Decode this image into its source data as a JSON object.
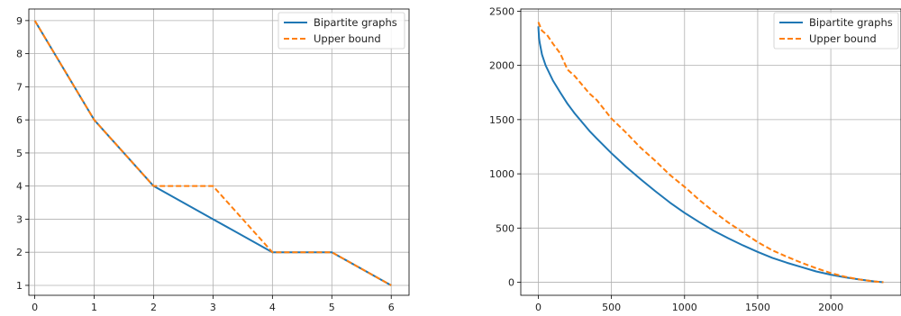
{
  "chart_data": [
    {
      "type": "line",
      "x": [
        0,
        1,
        2,
        3,
        4,
        5,
        6
      ],
      "xlim": [
        -0.1,
        6.3
      ],
      "ylim": [
        0.7,
        9.35
      ],
      "xticks": [
        "0",
        "1",
        "2",
        "3",
        "4",
        "5",
        "6"
      ],
      "yticks": [
        "1",
        "2",
        "3",
        "4",
        "5",
        "6",
        "7",
        "8",
        "9"
      ],
      "grid": true,
      "legend_position": "top-right",
      "series": [
        {
          "name": "Bipartite graphs",
          "color": "#1f77b4",
          "style": "solid",
          "values": [
            9,
            6,
            4,
            3,
            2,
            2,
            1
          ]
        },
        {
          "name": "Upper bound",
          "color": "#ff7f0e",
          "style": "dashed",
          "values": [
            9,
            6,
            4,
            4,
            2,
            2,
            1
          ]
        }
      ]
    },
    {
      "type": "line",
      "xlim": [
        -120,
        2480
      ],
      "ylim": [
        -120,
        2520
      ],
      "xticks": [
        "0",
        "500",
        "1000",
        "1500",
        "2000"
      ],
      "yticks": [
        "0",
        "500",
        "1000",
        "1500",
        "2000",
        "2500"
      ],
      "grid": true,
      "legend_position": "top-right",
      "series": [
        {
          "name": "Bipartite graphs",
          "color": "#1f77b4",
          "style": "solid",
          "x": [
            0,
            5,
            10,
            25,
            50,
            100,
            150,
            200,
            250,
            300,
            350,
            400,
            500,
            600,
            700,
            800,
            900,
            1000,
            1100,
            1200,
            1300,
            1400,
            1500,
            1600,
            1700,
            1800,
            1900,
            2000,
            2100,
            2200,
            2300,
            2360
          ],
          "values": [
            2360,
            2250,
            2205,
            2100,
            2000,
            1860,
            1750,
            1645,
            1555,
            1475,
            1395,
            1325,
            1190,
            1065,
            950,
            840,
            735,
            640,
            555,
            475,
            405,
            340,
            280,
            225,
            180,
            140,
            100,
            70,
            45,
            25,
            8,
            0
          ]
        },
        {
          "name": "Upper bound",
          "color": "#ff7f0e",
          "style": "dashed",
          "x": [
            0,
            25,
            60,
            100,
            150,
            200,
            250,
            300,
            350,
            400,
            500,
            600,
            700,
            800,
            900,
            1000,
            1100,
            1200,
            1300,
            1400,
            1500,
            1600,
            1700,
            1800,
            1900,
            2000,
            2100,
            2200,
            2300,
            2360
          ],
          "values": [
            2400,
            2320,
            2280,
            2200,
            2110,
            1960,
            1900,
            1820,
            1740,
            1680,
            1510,
            1380,
            1240,
            1120,
            990,
            880,
            760,
            650,
            550,
            460,
            370,
            295,
            235,
            180,
            130,
            85,
            50,
            25,
            8,
            0
          ]
        }
      ]
    }
  ]
}
